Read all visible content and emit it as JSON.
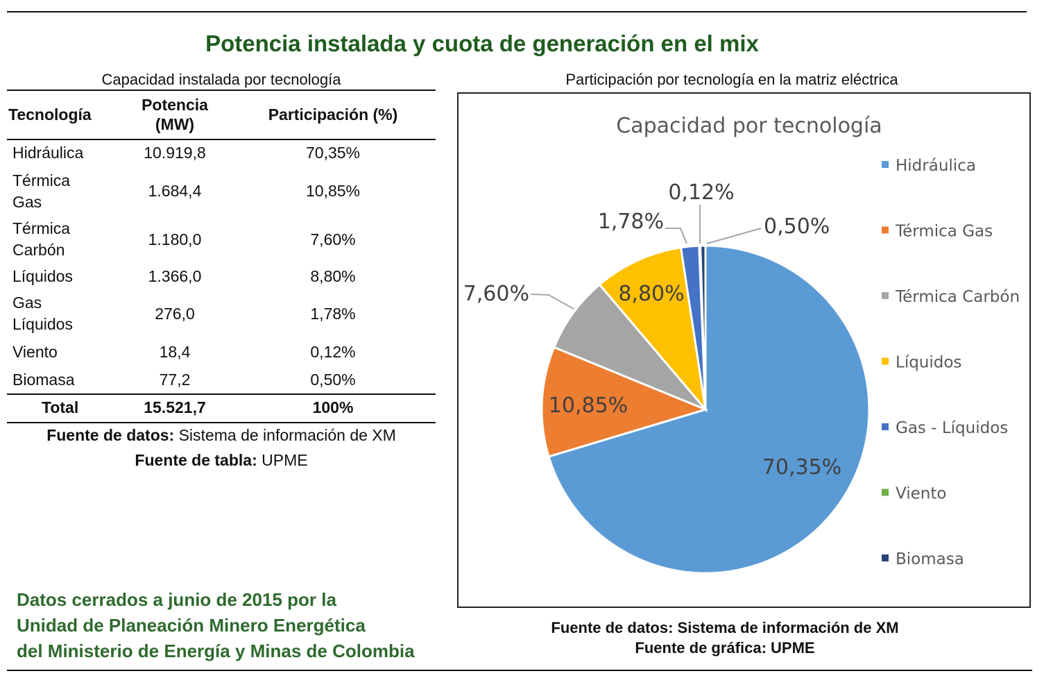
{
  "main_title": "Potencia instalada y cuota de generación en el mix",
  "table": {
    "caption": "Capacidad instalada por tecnología",
    "headers": {
      "tecnologia": "Tecnología",
      "potencia_l1": "Potencia",
      "potencia_l2": "(MW)",
      "participacion": "Participación (%)"
    },
    "rows": [
      {
        "tech_l1": "Hidráulica",
        "tech_l2": "",
        "mw": "10.919,8",
        "pct": "70,35%"
      },
      {
        "tech_l1": "Térmica",
        "tech_l2": "Gas",
        "mw": "1.684,4",
        "pct": "10,85%"
      },
      {
        "tech_l1": "Térmica",
        "tech_l2": "Carbón",
        "mw": "1.180,0",
        "pct": "7,60%"
      },
      {
        "tech_l1": "Líquidos",
        "tech_l2": "",
        "mw": "1.366,0",
        "pct": "8,80%"
      },
      {
        "tech_l1": "Gas",
        "tech_l2": "Líquidos",
        "mw": "276,0",
        "pct": "1,78%"
      },
      {
        "tech_l1": "Viento",
        "tech_l2": "",
        "mw": "18,4",
        "pct": "0,12%"
      },
      {
        "tech_l1": "Biomasa",
        "tech_l2": "",
        "mw": "77,2",
        "pct": "0,50%"
      }
    ],
    "total": {
      "label": "Total",
      "mw": "15.521,7",
      "pct": "100%"
    },
    "source_data_label": "Fuente de datos:",
    "source_data_value": " Sistema de información de XM",
    "source_table_label": "Fuente de tabla:",
    "source_table_value": " UPME"
  },
  "footer_note": {
    "line1": "Datos cerrados a junio de 2015 por la",
    "line2": "Unidad de Planeación Minero Energética",
    "line3": "del Ministerio de Energía y Minas de Colombia"
  },
  "chart_section": {
    "caption": "Participación por tecnología en la matriz eléctrica",
    "source_data": "Fuente de datos: Sistema de información de XM",
    "source_chart": "Fuente de gráfica: UPME"
  },
  "chart_data": {
    "type": "pie",
    "title": "Capacidad por tecnología",
    "categories": [
      "Hidráulica",
      "Térmica Gas",
      "Térmica Carbón",
      "Líquidos",
      "Gas - Líquidos",
      "Viento",
      "Biomasa"
    ],
    "values": [
      70.35,
      10.85,
      7.6,
      8.8,
      1.78,
      0.12,
      0.5
    ],
    "order": [
      0,
      1,
      2,
      3,
      4,
      5,
      6
    ],
    "labels": [
      "70,35%",
      "10,85%",
      "7,60%",
      "8,80%",
      "1,78%",
      "0,12%",
      "0,50%"
    ],
    "colors": [
      "#5b9bd5",
      "#ed7d31",
      "#a5a5a5",
      "#ffc000",
      "#4472c4",
      "#70ad47",
      "#264478"
    ],
    "legend_position": "right"
  }
}
